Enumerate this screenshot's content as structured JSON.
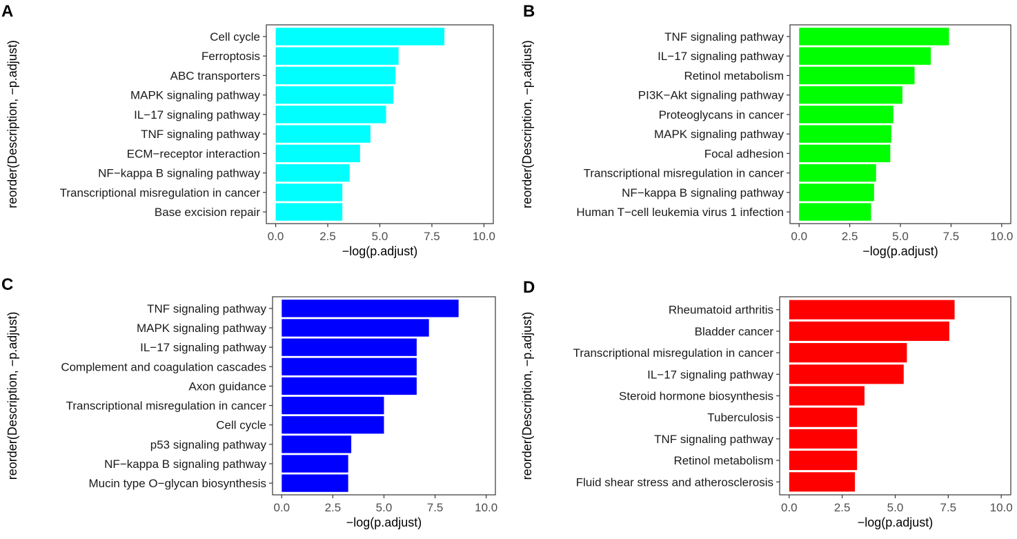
{
  "chart_data": [
    {
      "panel": "A",
      "type": "bar",
      "orientation": "horizontal",
      "color": "#00FFFF",
      "categories": [
        "Cell cycle",
        "Ferroptosis",
        "ABC transporters",
        "MAPK signaling pathway",
        "IL−17 signaling pathway",
        "TNF signaling pathway",
        "ECM−receptor interaction",
        "NF−kappa B signaling pathway",
        "Transcriptional misregulation in cancer",
        "Base excision repair"
      ],
      "values": [
        8.1,
        5.9,
        5.75,
        5.65,
        5.3,
        4.55,
        4.05,
        3.55,
        3.2,
        3.2
      ],
      "xlabel": "−log(p.adjust)",
      "ylabel": "reorder(Description, −p.adjust)",
      "xlim": [
        0,
        10
      ],
      "xticks": [
        "0.0",
        "2.5",
        "5.0",
        "7.5",
        "10.0"
      ]
    },
    {
      "panel": "B",
      "type": "bar",
      "orientation": "horizontal",
      "color": "#00FF00",
      "categories": [
        "TNF signaling pathway",
        "IL−17 signaling pathway",
        "Retinol metabolism",
        "PI3K−Akt signaling pathway",
        "Proteoglycans in cancer",
        "MAPK signaling pathway",
        "Focal adhesion",
        "Transcriptional misregulation in cancer",
        "NF−kappa B signaling pathway",
        "Human T−cell leukemia virus 1 infection"
      ],
      "values": [
        7.4,
        6.5,
        5.7,
        5.1,
        4.65,
        4.55,
        4.5,
        3.8,
        3.7,
        3.55
      ],
      "xlabel": "−log(p.adjust)",
      "ylabel": "reorder(Description, −p.adjust)",
      "xlim": [
        0,
        10
      ],
      "xticks": [
        "0.0",
        "2.5",
        "5.0",
        "7.5",
        "10.0"
      ]
    },
    {
      "panel": "C",
      "type": "bar",
      "orientation": "horizontal",
      "color": "#0000FF",
      "categories": [
        "TNF signaling pathway",
        "MAPK signaling pathway",
        "IL−17 signaling pathway",
        "Complement and coagulation cascades",
        "Axon guidance",
        "Transcriptional misregulation in cancer",
        "Cell cycle",
        "p53 signaling pathway",
        "NF−kappa B signaling pathway",
        "Mucin type O−glycan biosynthesis"
      ],
      "values": [
        8.65,
        7.2,
        6.6,
        6.6,
        6.6,
        5.0,
        5.0,
        3.4,
        3.25,
        3.25
      ],
      "xlabel": "−log(p.adjust)",
      "ylabel": "reorder(Description, −p.adjust)",
      "xlim": [
        0,
        10
      ],
      "xticks": [
        "0.0",
        "2.5",
        "5.0",
        "7.5",
        "10.0"
      ]
    },
    {
      "panel": "D",
      "type": "bar",
      "orientation": "horizontal",
      "color": "#FF0000",
      "categories": [
        "Rheumatoid arthritis",
        "Bladder cancer",
        "Transcriptional misregulation in cancer",
        "IL−17 signaling pathway",
        "Steroid hormone biosynthesis",
        "Tuberculosis",
        "TNF signaling pathway",
        "Retinol metabolism",
        "Fluid shear stress and atherosclerosis"
      ],
      "values": [
        7.8,
        7.55,
        5.55,
        5.4,
        3.55,
        3.2,
        3.2,
        3.2,
        3.1
      ],
      "xlabel": "−log(p.adjust)",
      "ylabel": "reorder(Description, −p.adjust)",
      "xlim": [
        0,
        10
      ],
      "xticks": [
        "0.0",
        "2.5",
        "5.0",
        "7.5",
        "10.0"
      ]
    }
  ]
}
